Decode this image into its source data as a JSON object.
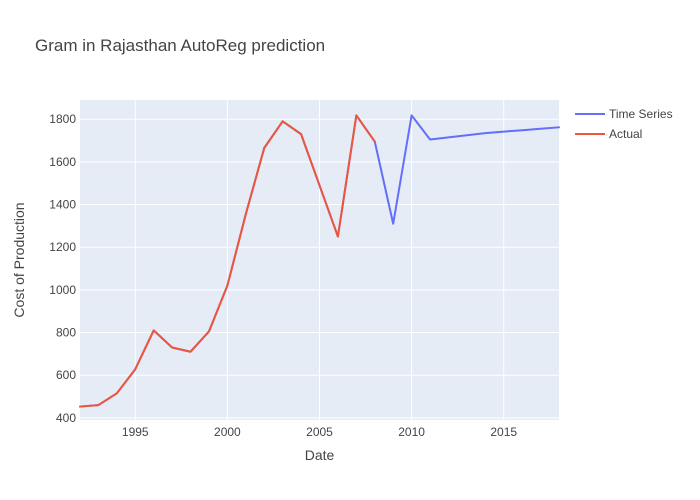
{
  "chart_data": {
    "type": "line",
    "title": "Gram in Rajasthan AutoReg prediction",
    "xlabel": "Date",
    "ylabel": "Cost of Production",
    "xlim": [
      1992,
      2018
    ],
    "ylim": [
      390,
      1890
    ],
    "x_ticks": [
      1995,
      2000,
      2005,
      2010,
      2015
    ],
    "y_ticks": [
      400,
      600,
      800,
      1000,
      1200,
      1400,
      1600,
      1800
    ],
    "grid": true,
    "legend_position": "top-right",
    "plot_background": "#e5ecf6",
    "series": [
      {
        "name": "Time Series",
        "color": "#636efa",
        "x": [
          1992,
          1993,
          1994,
          1995,
          1996,
          1997,
          1998,
          1999,
          2000,
          2001,
          2002,
          2003,
          2004,
          2005,
          2006,
          2007,
          2008,
          2009,
          2010,
          2011,
          2012,
          2013,
          2014,
          2015,
          2016,
          2017,
          2018
        ],
        "y": [
          453,
          460,
          515,
          628,
          810,
          730,
          710,
          805,
          1020,
          1355,
          1665,
          1790,
          1730,
          1490,
          1250,
          1818,
          1695,
          1310,
          1818,
          1705,
          1715,
          1725,
          1735,
          1742,
          1748,
          1755,
          1762
        ]
      },
      {
        "name": "Actual",
        "color": "#ef553b",
        "x": [
          1992,
          1993,
          1994,
          1995,
          1996,
          1997,
          1998,
          1999,
          2000,
          2001,
          2002,
          2003,
          2004,
          2005,
          2006,
          2007,
          2008
        ],
        "y": [
          453,
          460,
          515,
          628,
          810,
          730,
          710,
          805,
          1020,
          1355,
          1665,
          1790,
          1730,
          1490,
          1250,
          1818,
          1695
        ]
      }
    ]
  }
}
